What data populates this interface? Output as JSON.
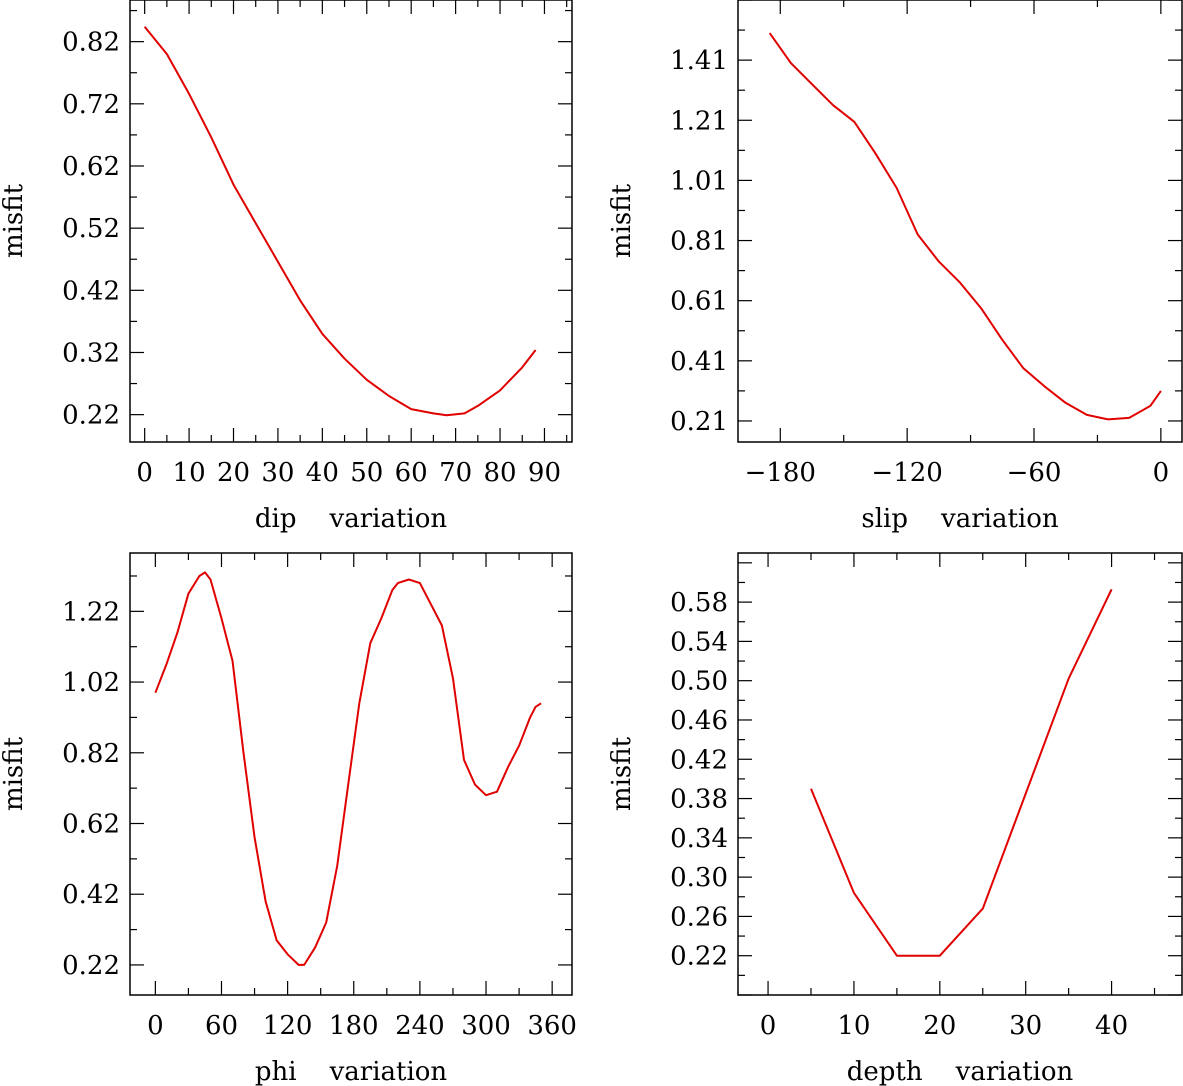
{
  "chart_data": [
    {
      "type": "line",
      "id": "dip",
      "xlabel": "dip    variation",
      "ylabel": "misfit",
      "xlim": [
        -3.3,
        96.2
      ],
      "ylim": [
        0.176,
        0.887
      ],
      "xticks": [
        0,
        10,
        20,
        30,
        40,
        50,
        60,
        70,
        80,
        90
      ],
      "xtick_labels": [
        "0",
        "10",
        "20",
        "30",
        "40",
        "50",
        "60",
        "70",
        "80",
        "90"
      ],
      "yticks": [
        0.22,
        0.32,
        0.42,
        0.52,
        0.62,
        0.72,
        0.82
      ],
      "ytick_labels": [
        "0.22",
        "0.32",
        "0.42",
        "0.52",
        "0.62",
        "0.72",
        "0.82"
      ],
      "color": "#e00000",
      "series": [
        {
          "name": "misfit",
          "x": [
            0,
            5,
            10,
            15,
            20,
            25,
            30,
            35,
            40,
            45,
            50,
            55,
            60,
            65,
            68,
            72,
            75,
            80,
            85,
            88
          ],
          "y": [
            0.844,
            0.8,
            0.736,
            0.666,
            0.59,
            0.528,
            0.466,
            0.404,
            0.35,
            0.31,
            0.276,
            0.25,
            0.229,
            0.222,
            0.219,
            0.222,
            0.234,
            0.259,
            0.296,
            0.324
          ]
        }
      ]
    },
    {
      "type": "line",
      "id": "slip",
      "xlabel": "slip    variation",
      "ylabel": "misfit",
      "xlim": [
        -200,
        10
      ],
      "ylim": [
        0.14,
        1.61
      ],
      "xticks": [
        -180,
        -120,
        -60,
        0
      ],
      "xtick_labels": [
        "−180",
        "−120",
        "−60",
        "0"
      ],
      "yticks": [
        0.21,
        0.41,
        0.61,
        0.81,
        1.01,
        1.21,
        1.41
      ],
      "ytick_labels": [
        "0.21",
        "0.41",
        "0.61",
        "0.81",
        "1.01",
        "1.21",
        "1.41"
      ],
      "color": "#e00000",
      "series": [
        {
          "name": "misfit",
          "x": [
            -185,
            -175,
            -165,
            -155,
            -145,
            -135,
            -125,
            -115,
            -105,
            -95,
            -85,
            -75,
            -65,
            -55,
            -45,
            -35,
            -25,
            -15,
            -5,
            0
          ],
          "y": [
            1.5,
            1.4,
            1.33,
            1.26,
            1.205,
            1.1,
            0.985,
            0.83,
            0.74,
            0.67,
            0.585,
            0.48,
            0.385,
            0.325,
            0.27,
            0.23,
            0.215,
            0.22,
            0.26,
            0.31
          ]
        }
      ]
    },
    {
      "type": "line",
      "id": "phi",
      "xlabel": "phi    variation",
      "ylabel": "misfit",
      "xlim": [
        -23,
        378
      ],
      "ylim": [
        0.135,
        1.385
      ],
      "xticks": [
        0,
        60,
        120,
        180,
        240,
        300,
        360
      ],
      "xtick_labels": [
        "0",
        "60",
        "120",
        "180",
        "240",
        "300",
        "360"
      ],
      "yticks": [
        0.22,
        0.42,
        0.62,
        0.82,
        1.02,
        1.22
      ],
      "ytick_labels": [
        "0.22",
        "0.42",
        "0.62",
        "0.82",
        "1.02",
        "1.22"
      ],
      "color": "#e00000",
      "series": [
        {
          "name": "misfit",
          "x": [
            0,
            10,
            20,
            30,
            40,
            45,
            50,
            60,
            70,
            80,
            90,
            100,
            110,
            120,
            130,
            135,
            145,
            155,
            165,
            175,
            185,
            195,
            205,
            215,
            220,
            230,
            240,
            250,
            260,
            270,
            280,
            290,
            300,
            310,
            320,
            330,
            340,
            345,
            350
          ],
          "y": [
            0.99,
            1.07,
            1.16,
            1.27,
            1.32,
            1.33,
            1.31,
            1.2,
            1.08,
            0.82,
            0.58,
            0.4,
            0.29,
            0.25,
            0.22,
            0.22,
            0.27,
            0.34,
            0.5,
            0.73,
            0.96,
            1.13,
            1.2,
            1.28,
            1.3,
            1.31,
            1.3,
            1.24,
            1.18,
            1.03,
            0.8,
            0.73,
            0.7,
            0.71,
            0.78,
            0.84,
            0.92,
            0.95,
            0.96
          ]
        }
      ]
    },
    {
      "type": "line",
      "id": "depth",
      "xlabel": "depth    variation",
      "ylabel": "misfit",
      "xlim": [
        -3.5,
        48.2
      ],
      "ylim": [
        0.18,
        0.63
      ],
      "xticks": [
        0,
        10,
        20,
        30,
        40
      ],
      "xtick_labels": [
        "0",
        "10",
        "20",
        "30",
        "40"
      ],
      "yticks": [
        0.22,
        0.26,
        0.3,
        0.34,
        0.38,
        0.42,
        0.46,
        0.5,
        0.54,
        0.58
      ],
      "ytick_labels": [
        "0.22",
        "0.26",
        "0.30",
        "0.34",
        "0.38",
        "0.42",
        "0.46",
        "0.50",
        "0.54",
        "0.58"
      ],
      "color": "#e00000",
      "series": [
        {
          "name": "misfit",
          "x": [
            5,
            10,
            15,
            20,
            25,
            30,
            35,
            40
          ],
          "y": [
            0.39,
            0.284,
            0.22,
            0.22,
            0.268,
            0.385,
            0.502,
            0.593
          ]
        }
      ]
    }
  ]
}
